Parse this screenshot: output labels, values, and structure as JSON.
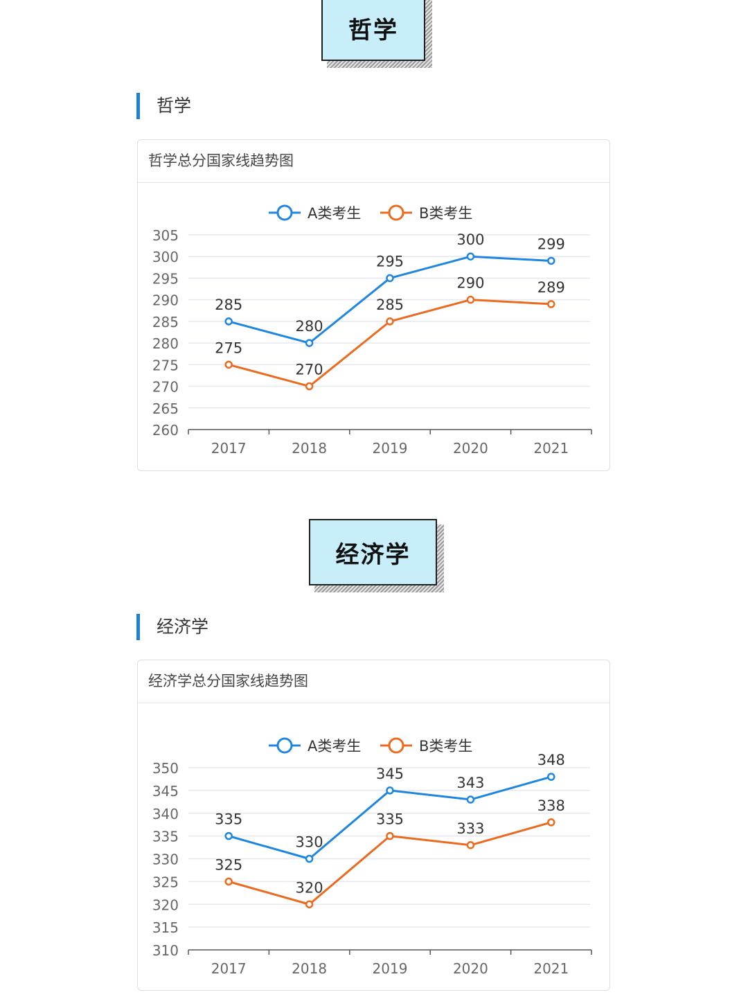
{
  "legend": {
    "series_a": "A类考生",
    "series_b": "B类考生"
  },
  "colors": {
    "series_a": "#1f86e0",
    "series_b": "#ea6b1f"
  },
  "sections": [
    {
      "banner": "哲学",
      "heading": "哲学",
      "card_title": "哲学总分国家线趋势图"
    },
    {
      "banner": "经济学",
      "heading": "经济学",
      "card_title": "经济学总分国家线趋势图"
    }
  ],
  "chart_data": [
    {
      "type": "line",
      "title": "哲学总分国家线趋势图",
      "categories": [
        "2017",
        "2018",
        "2019",
        "2020",
        "2021"
      ],
      "ylim": [
        260,
        305
      ],
      "yticks": [
        260,
        265,
        270,
        275,
        280,
        285,
        290,
        295,
        300,
        305
      ],
      "grid": true,
      "legend_position": "top-center",
      "series": [
        {
          "name": "A类考生",
          "values": [
            285,
            280,
            295,
            300,
            299
          ]
        },
        {
          "name": "B类考生",
          "values": [
            275,
            270,
            285,
            290,
            289
          ]
        }
      ]
    },
    {
      "type": "line",
      "title": "经济学总分国家线趋势图",
      "categories": [
        "2017",
        "2018",
        "2019",
        "2020",
        "2021"
      ],
      "ylim": [
        310,
        350
      ],
      "yticks": [
        310,
        315,
        320,
        325,
        330,
        335,
        340,
        345,
        350
      ],
      "grid": true,
      "legend_position": "top-center",
      "series": [
        {
          "name": "A类考生",
          "values": [
            335,
            330,
            345,
            343,
            348
          ]
        },
        {
          "name": "B类考生",
          "values": [
            325,
            320,
            335,
            333,
            338
          ]
        }
      ]
    }
  ]
}
